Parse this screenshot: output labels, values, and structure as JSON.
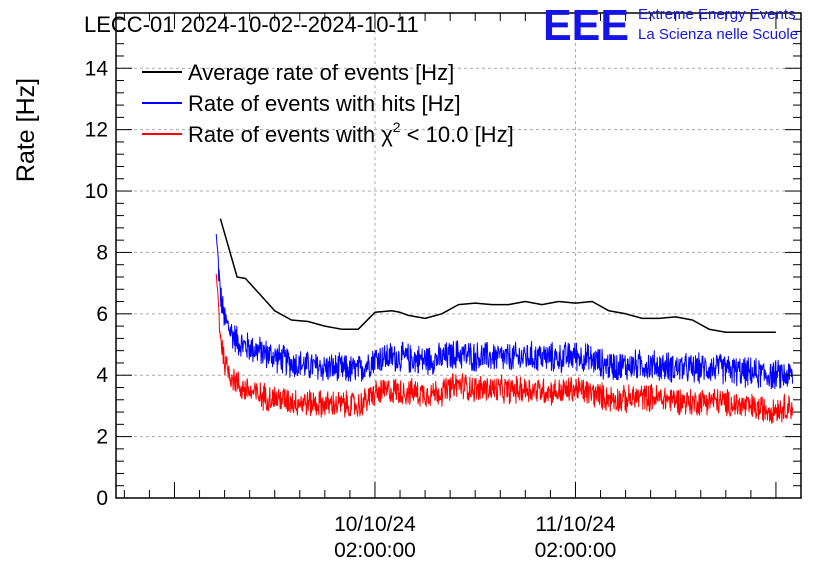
{
  "chart_data": {
    "type": "line",
    "title": "LECC-01 2024-10-02--2024-10-11",
    "ylabel": "Rate [Hz]",
    "xlabel": "",
    "ylim": [
      0,
      15.8
    ],
    "y_ticks": [
      0,
      2,
      4,
      6,
      8,
      10,
      12,
      14
    ],
    "x_range_hours": [
      -31,
      51
    ],
    "x_ticks": [
      {
        "hour": 0,
        "date": "10/10/24",
        "time": "02:00:00"
      },
      {
        "hour": 24,
        "date": "11/10/24",
        "time": "02:00:00"
      }
    ],
    "grid": true,
    "legend_position": "top-left",
    "series": [
      {
        "name": "Average rate of events [Hz]",
        "color": "#000000",
        "noise": 0,
        "x": [
          -18.5,
          -16.5,
          -15.5,
          -14,
          -12,
          -10,
          -8,
          -6,
          -4,
          -2,
          0,
          2,
          3,
          4,
          6,
          8,
          10,
          12,
          14,
          16,
          18,
          20,
          22,
          24,
          26,
          28,
          30,
          32,
          34,
          36,
          38,
          40,
          42,
          44,
          46,
          48
        ],
        "y": [
          9.1,
          7.2,
          7.15,
          6.7,
          6.1,
          5.8,
          5.75,
          5.6,
          5.5,
          5.5,
          6.05,
          6.1,
          6.05,
          5.95,
          5.85,
          6.0,
          6.3,
          6.35,
          6.3,
          6.3,
          6.4,
          6.3,
          6.4,
          6.35,
          6.4,
          6.1,
          6.0,
          5.85,
          5.85,
          5.9,
          5.8,
          5.5,
          5.4,
          5.4,
          5.4,
          5.4
        ]
      },
      {
        "name": "Rate of events with hits [Hz]",
        "color": "#0000ff",
        "noise": 0.55,
        "x": [
          -19,
          -18.5,
          -18,
          -17,
          -16,
          -14,
          -12,
          -10,
          -8,
          -6,
          -4,
          -2,
          0,
          2,
          4,
          6,
          8,
          10,
          12,
          14,
          16,
          18,
          20,
          22,
          24,
          26,
          28,
          30,
          32,
          34,
          36,
          38,
          40,
          42,
          44,
          46,
          48,
          50
        ],
        "y": [
          8.6,
          6.6,
          5.8,
          5.3,
          5.0,
          4.8,
          4.6,
          4.4,
          4.3,
          4.25,
          4.2,
          4.15,
          4.55,
          4.6,
          4.55,
          4.5,
          4.55,
          4.7,
          4.6,
          4.6,
          4.55,
          4.6,
          4.6,
          4.55,
          4.65,
          4.5,
          4.3,
          4.3,
          4.35,
          4.3,
          4.25,
          4.2,
          4.25,
          4.2,
          4.1,
          4.05,
          4.0,
          4.0
        ]
      },
      {
        "name": "Rate of events with χ² < 10.0 [Hz]",
        "color": "#ff0000",
        "noise": 0.5,
        "x": [
          -19,
          -18.5,
          -18,
          -17,
          -16,
          -14,
          -12,
          -10,
          -8,
          -6,
          -4,
          -2,
          0,
          2,
          4,
          6,
          8,
          10,
          12,
          14,
          16,
          18,
          20,
          22,
          24,
          26,
          28,
          30,
          32,
          34,
          36,
          38,
          40,
          42,
          44,
          46,
          48,
          50
        ],
        "y": [
          7.3,
          5.3,
          4.4,
          3.9,
          3.6,
          3.35,
          3.25,
          3.15,
          3.1,
          3.05,
          3.05,
          3.0,
          3.4,
          3.5,
          3.45,
          3.4,
          3.45,
          3.7,
          3.55,
          3.55,
          3.5,
          3.55,
          3.5,
          3.45,
          3.55,
          3.4,
          3.25,
          3.2,
          3.3,
          3.25,
          3.2,
          3.1,
          3.2,
          3.1,
          3.0,
          2.9,
          2.9,
          3.0
        ]
      }
    ]
  },
  "legend": {
    "item1": "Average rate of events [Hz]",
    "item2": "Rate of events with hits [Hz]",
    "item3_prefix": "Rate of events with χ",
    "item3_sup": "2",
    "item3_suffix": " < 10.0 [Hz]"
  },
  "logo": {
    "mark": "EEE",
    "line1": "Extreme Energy Events",
    "line2": "La Scienza nelle Scuole",
    "color": "#1414e6"
  }
}
